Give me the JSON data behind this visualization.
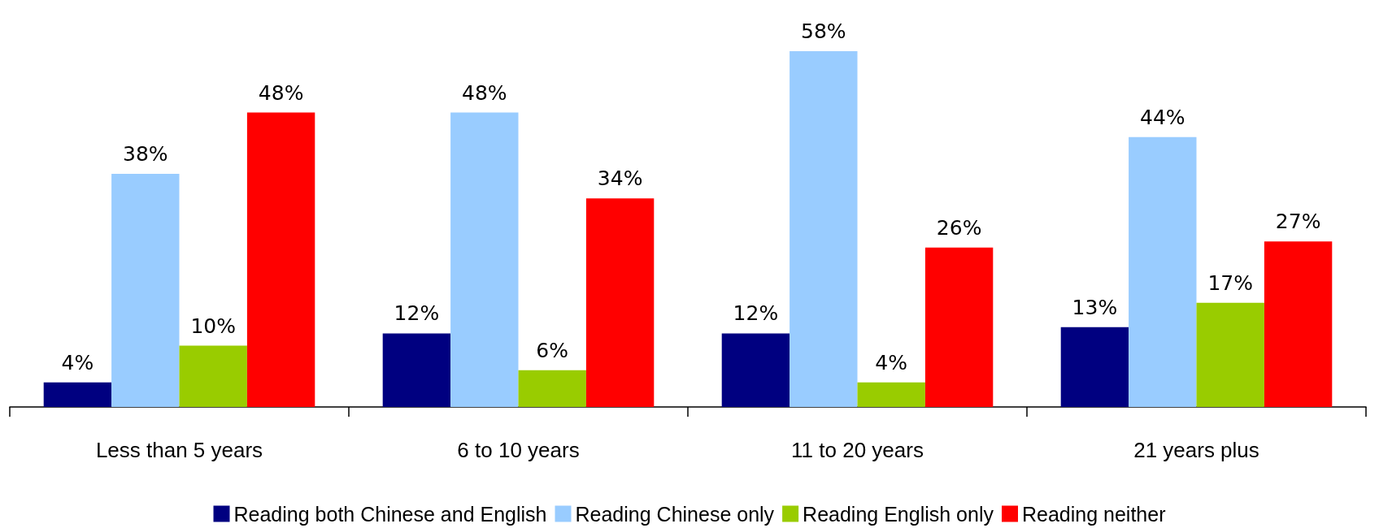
{
  "chart_data": {
    "type": "bar",
    "categories": [
      "Less than 5 years",
      "6 to 10 years",
      "11 to 20 years",
      "21 years plus"
    ],
    "series": [
      {
        "name": "Reading both Chinese and English",
        "color": "#000080",
        "values": [
          4,
          12,
          12,
          13
        ],
        "value_labels": [
          "4%",
          "12%",
          "12%",
          "13%"
        ]
      },
      {
        "name": "Reading Chinese only",
        "color": "#99ccff",
        "values": [
          38,
          48,
          58,
          44
        ],
        "value_labels": [
          "38%",
          "48%",
          "58%",
          "44%"
        ]
      },
      {
        "name": "Reading English only",
        "color": "#99cc00",
        "values": [
          10,
          6,
          4,
          17
        ],
        "value_labels": [
          "10%",
          "6%",
          "4%",
          "17%"
        ]
      },
      {
        "name": "Reading neither",
        "color": "#ff0000",
        "values": [
          48,
          34,
          26,
          27
        ],
        "value_labels": [
          "48%",
          "34%",
          "26%",
          "27%"
        ]
      }
    ],
    "legend": "bottom",
    "grid": false,
    "tick_labels": "x"
  }
}
